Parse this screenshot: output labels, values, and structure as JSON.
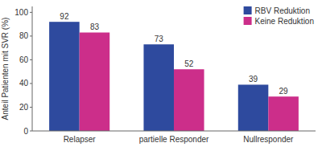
{
  "chart_data": {
    "type": "bar",
    "categories": [
      "Relapser",
      "partielle Responder",
      "Nullresponder"
    ],
    "series": [
      {
        "name": "RBV Reduktion",
        "color": "#2E4A9E",
        "values": [
          92,
          73,
          39
        ]
      },
      {
        "name": "Keine Reduktion",
        "color": "#CC2E8A",
        "values": [
          83,
          52,
          29
        ]
      }
    ],
    "y_label": "Anteil Patienten mit SVR (%)",
    "ylim": [
      0,
      105
    ],
    "yticks": [
      0,
      20,
      40,
      60,
      80,
      100
    ],
    "data_labels": true,
    "legend": "upper right",
    "grid": false
  }
}
